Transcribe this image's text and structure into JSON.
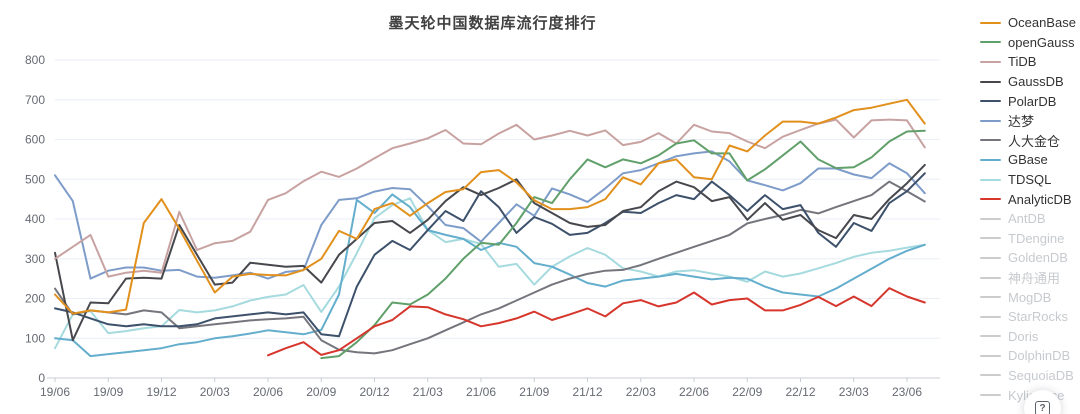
{
  "page": {
    "title": "墨天轮中国数据库流行度排行",
    "help_label": "?"
  },
  "chart_data": {
    "type": "line",
    "title": "墨天轮中国数据库流行度排行",
    "grid": true,
    "legend_position": "right",
    "ylim": [
      0,
      800
    ],
    "y_ticks": [
      0,
      100,
      200,
      300,
      400,
      500,
      600,
      700,
      800
    ],
    "x_tick_labels": [
      "19/06",
      "19/09",
      "19/12",
      "20/03",
      "20/06",
      "20/09",
      "20/12",
      "21/03",
      "21/06",
      "21/09",
      "21/12",
      "22/03",
      "22/06",
      "22/09",
      "22/12",
      "23/03",
      "23/06"
    ],
    "x": [
      "19/06",
      "19/07",
      "19/08",
      "19/09",
      "19/10",
      "19/11",
      "19/12",
      "20/01",
      "20/02",
      "20/03",
      "20/04",
      "20/05",
      "20/06",
      "20/07",
      "20/08",
      "20/09",
      "20/10",
      "20/11",
      "20/12",
      "21/01",
      "21/02",
      "21/03",
      "21/04",
      "21/05",
      "21/06",
      "21/07",
      "21/08",
      "21/09",
      "21/10",
      "21/11",
      "21/12",
      "22/01",
      "22/02",
      "22/03",
      "22/04",
      "22/05",
      "22/06",
      "22/07",
      "22/08",
      "22/09",
      "22/10",
      "22/11",
      "22/12",
      "23/01",
      "23/02",
      "23/03",
      "23/04",
      "23/05",
      "23/06",
      "23/07"
    ],
    "series": [
      {
        "name": "OceanBase",
        "color": "#e2901c",
        "values": [
          210,
          162,
          170,
          165,
          172,
          390,
          450,
          375,
          295,
          215,
          255,
          262,
          259,
          258,
          272,
          300,
          370,
          350,
          425,
          440,
          408,
          440,
          468,
          475,
          518,
          523,
          492,
          447,
          425,
          425,
          430,
          450,
          505,
          487,
          540,
          550,
          505,
          500,
          585,
          570,
          610,
          645,
          645,
          640,
          655,
          674,
          680,
          690,
          700,
          640
        ]
      },
      {
        "name": "openGauss",
        "color": "#61a06a",
        "values": [
          null,
          null,
          null,
          null,
          null,
          null,
          null,
          null,
          null,
          null,
          null,
          null,
          null,
          null,
          null,
          50,
          55,
          90,
          133,
          190,
          185,
          210,
          250,
          300,
          340,
          335,
          390,
          455,
          440,
          500,
          550,
          530,
          550,
          540,
          560,
          590,
          598,
          565,
          565,
          497,
          525,
          560,
          595,
          550,
          528,
          530,
          555,
          595,
          620,
          622
        ]
      },
      {
        "name": "TiDB",
        "color": "#c7a2a0",
        "values": [
          300,
          330,
          360,
          255,
          265,
          270,
          265,
          418,
          322,
          339,
          345,
          368,
          448,
          465,
          495,
          519,
          506,
          527,
          553,
          578,
          590,
          603,
          624,
          590,
          588,
          615,
          637,
          600,
          610,
          622,
          610,
          623,
          586,
          594,
          616,
          590,
          637,
          620,
          616,
          595,
          578,
          607,
          624,
          640,
          650,
          605,
          648,
          650,
          648,
          580
        ]
      },
      {
        "name": "GaussDB",
        "color": "#47484e",
        "values": [
          315,
          95,
          190,
          188,
          250,
          252,
          250,
          385,
          310,
          235,
          240,
          290,
          285,
          280,
          282,
          240,
          310,
          350,
          390,
          395,
          365,
          398,
          445,
          480,
          460,
          478,
          500,
          440,
          415,
          390,
          380,
          385,
          420,
          430,
          470,
          494,
          480,
          445,
          455,
          398,
          440,
          398,
          410,
          372,
          352,
          410,
          400,
          450,
          490,
          536
        ]
      },
      {
        "name": "PolarDB",
        "color": "#3d516b",
        "values": [
          175,
          165,
          150,
          135,
          130,
          135,
          130,
          130,
          135,
          150,
          155,
          160,
          165,
          160,
          165,
          110,
          105,
          230,
          310,
          345,
          322,
          372,
          420,
          395,
          470,
          430,
          365,
          405,
          388,
          360,
          365,
          390,
          418,
          415,
          440,
          460,
          450,
          494,
          460,
          420,
          460,
          425,
          435,
          365,
          330,
          390,
          370,
          440,
          470,
          515
        ]
      },
      {
        "name": "达梦",
        "color": "#7e9cc9",
        "values": [
          510,
          445,
          250,
          270,
          278,
          278,
          270,
          272,
          255,
          252,
          258,
          265,
          250,
          267,
          271,
          385,
          448,
          452,
          469,
          478,
          475,
          432,
          385,
          377,
          343,
          390,
          437,
          408,
          477,
          462,
          443,
          477,
          515,
          523,
          540,
          558,
          565,
          570,
          545,
          497,
          485,
          472,
          490,
          527,
          527,
          512,
          503,
          540,
          515,
          465
        ]
      },
      {
        "name": "人大金仓",
        "color": "#75757d",
        "values": [
          225,
          160,
          170,
          165,
          160,
          170,
          165,
          125,
          130,
          135,
          140,
          145,
          148,
          150,
          154,
          95,
          71,
          65,
          62,
          70,
          85,
          100,
          120,
          140,
          160,
          175,
          195,
          215,
          235,
          250,
          262,
          270,
          272,
          284,
          300,
          315,
          330,
          345,
          360,
          389,
          400,
          410,
          423,
          414,
          430,
          445,
          460,
          494,
          470,
          444
        ]
      },
      {
        "name": "GBase",
        "color": "#64aecd",
        "values": [
          100,
          95,
          55,
          60,
          65,
          70,
          75,
          85,
          90,
          100,
          105,
          112,
          120,
          115,
          110,
          121,
          210,
          448,
          415,
          462,
          430,
          372,
          360,
          350,
          322,
          340,
          330,
          289,
          280,
          260,
          239,
          230,
          245,
          250,
          255,
          262,
          255,
          248,
          252,
          250,
          230,
          215,
          210,
          205,
          225,
          250,
          275,
          300,
          320,
          335
        ]
      },
      {
        "name": "TDSQL",
        "color": "#a5dade",
        "values": [
          75,
          160,
          168,
          113,
          118,
          125,
          130,
          171,
          165,
          170,
          180,
          195,
          204,
          210,
          234,
          166,
          230,
          314,
          402,
          435,
          452,
          372,
          342,
          350,
          337,
          280,
          287,
          235,
          280,
          306,
          327,
          310,
          276,
          268,
          255,
          268,
          271,
          263,
          255,
          242,
          268,
          255,
          263,
          276,
          289,
          305,
          315,
          320,
          328,
          335
        ]
      },
      {
        "name": "AnalyticDB",
        "color": "#d6362c",
        "values": [
          null,
          null,
          null,
          null,
          null,
          null,
          null,
          null,
          null,
          null,
          null,
          null,
          57,
          75,
          90,
          58,
          70,
          100,
          130,
          146,
          180,
          178,
          160,
          148,
          130,
          138,
          150,
          167,
          146,
          160,
          175,
          155,
          188,
          196,
          180,
          190,
          215,
          185,
          196,
          200,
          170,
          170,
          184,
          204,
          181,
          205,
          181,
          226,
          205,
          190
        ]
      }
    ],
    "inactive_legend": [
      "AntDB",
      "TDengine",
      "GoldenDB",
      "神舟通用",
      "MogDB",
      "StarRocks",
      "Doris",
      "DolphinDB",
      "SequoiaDB",
      "Kyligence"
    ],
    "inactive_color": "#cccccc",
    "grid_color": "#e9eef7",
    "axis_color": "#c8ccd6",
    "tick_text_color": "#666a73"
  }
}
